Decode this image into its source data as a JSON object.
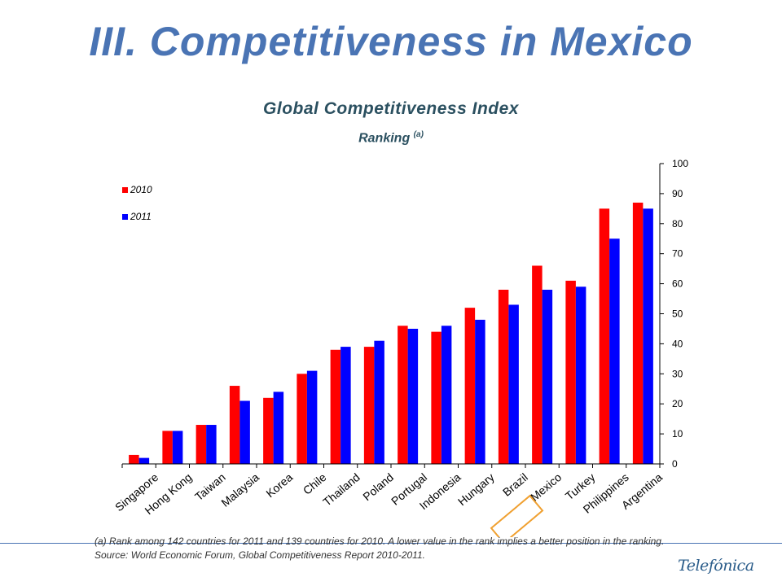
{
  "slide": {
    "title": "III. Competitiveness in Mexico",
    "footnote": "(a) Rank among 142 countries for 2011 and 139 countries for 2010. A lower value in the rank implies a better position in the ranking. Source: World Economic Forum, Global Competitiveness Report 2010-2011.",
    "brand": "Telefónica"
  },
  "chart_data": {
    "type": "bar",
    "title": "Global Competitiveness Index",
    "subtitle": "Ranking",
    "subtitle_note": "(a)",
    "categories": [
      "Singapore",
      "Hong Kong",
      "Taiwan",
      "Malaysia",
      "Korea",
      "Chile",
      "Thailand",
      "Poland",
      "Portugal",
      "Indonesia",
      "Hungary",
      "Brazil",
      "Mexico",
      "Turkey",
      "Philippines",
      "Argentina"
    ],
    "series": [
      {
        "name": "2010",
        "color": "#ff0000",
        "values": [
          3,
          11,
          13,
          26,
          22,
          30,
          38,
          39,
          46,
          44,
          52,
          58,
          66,
          61,
          85,
          87
        ]
      },
      {
        "name": "2011",
        "color": "#0000ff",
        "values": [
          2,
          11,
          13,
          21,
          24,
          31,
          39,
          41,
          45,
          46,
          48,
          53,
          58,
          59,
          75,
          85
        ]
      }
    ],
    "ylim": [
      0,
      100
    ],
    "yticks": [
      0,
      10,
      20,
      30,
      40,
      50,
      60,
      70,
      80,
      90,
      100
    ],
    "y_axis_side": "right",
    "legend_position": "top-left",
    "highlighted_category": "Mexico",
    "highlight_color": "#f0a030",
    "grid": false
  }
}
